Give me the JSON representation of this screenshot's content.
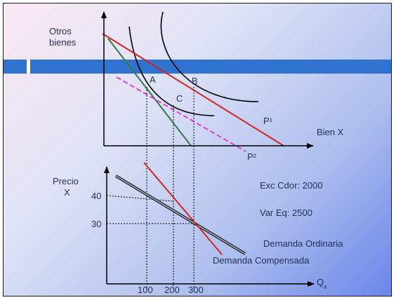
{
  "upper_panel": {
    "y_axis_label_line1": "Otros",
    "y_axis_label_line2": "bienes",
    "x_axis_label": "Bien X",
    "point_a": "A",
    "point_b": "B",
    "point_c": "C",
    "budget_line_p1": "P¹",
    "budget_line_p2": "P²"
  },
  "lower_panel": {
    "y_axis_label_line1": "Precio",
    "y_axis_label_line2": "X",
    "x_axis_label_main": "Q",
    "x_axis_label_sub": "x",
    "price_ticks": [
      "40",
      "30"
    ],
    "quantity_ticks": [
      "100",
      "200",
      "300"
    ],
    "consumer_surplus_change": "Exc Cdor: 2000",
    "equivalent_variation": "Var Eq: 2500",
    "ordinary_demand_label": "Demanda Ordinaria",
    "compensated_demand_label": "Demanda Compensada"
  },
  "colors": {
    "axis": "#000000",
    "budget_p1": "#d0262a",
    "budget_original": "#2f7a4a",
    "budget_p2_dashed": "#e23ad6",
    "ordinary_demand": "#d0262a",
    "compensated_demand": "#222222",
    "banner": "#2f72cf",
    "text": "#1f2f56"
  }
}
